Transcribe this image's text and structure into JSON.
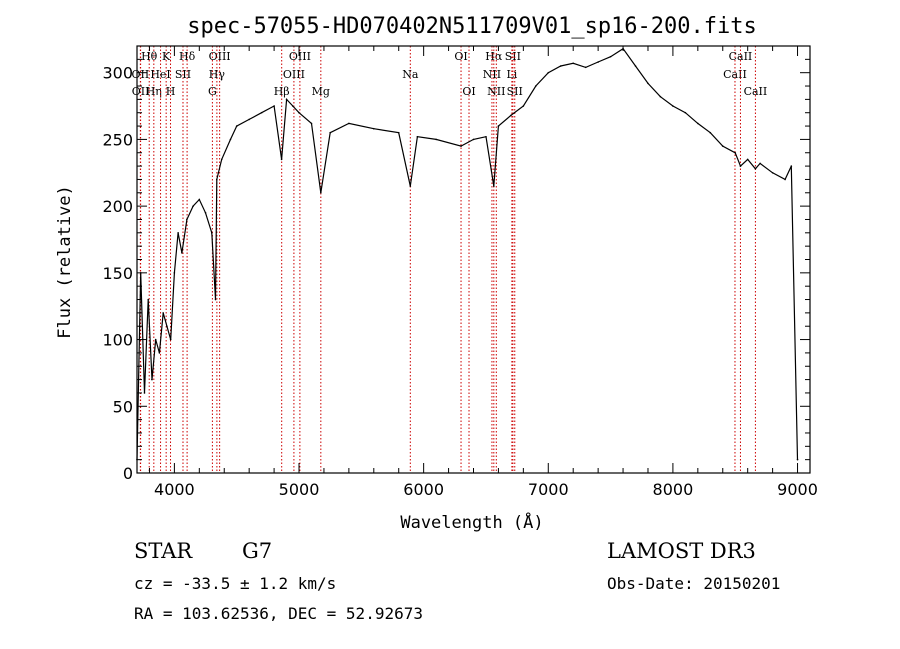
{
  "chart_data": {
    "type": "line",
    "title": "spec-57055-HD070402N511709V01_sp16-200.fits",
    "xlabel": "Wavelength (Å)",
    "ylabel": "Flux (relative)",
    "xlim": [
      3700,
      9100
    ],
    "ylim": [
      0,
      320
    ],
    "xticks": [
      4000,
      5000,
      6000,
      7000,
      8000,
      9000
    ],
    "yticks": [
      0,
      50,
      100,
      150,
      200,
      250,
      300
    ],
    "series": [
      {
        "name": "spectrum",
        "x": [
          3700,
          3730,
          3760,
          3790,
          3820,
          3850,
          3880,
          3910,
          3940,
          3970,
          4000,
          4030,
          4060,
          4100,
          4150,
          4200,
          4250,
          4300,
          4330,
          4340,
          4380,
          4450,
          4500,
          4600,
          4700,
          4800,
          4860,
          4900,
          4950,
          5000,
          5100,
          5175,
          5250,
          5400,
          5600,
          5800,
          5893,
          5950,
          6100,
          6300,
          6400,
          6500,
          6563,
          6600,
          6700,
          6800,
          6900,
          7000,
          7100,
          7200,
          7300,
          7400,
          7500,
          7600,
          7700,
          7800,
          7900,
          8000,
          8100,
          8200,
          8300,
          8400,
          8500,
          8542,
          8600,
          8662,
          8700,
          8800,
          8900,
          8950,
          9000
        ],
        "values": [
          10,
          150,
          60,
          130,
          70,
          100,
          90,
          120,
          110,
          100,
          150,
          180,
          165,
          190,
          200,
          205,
          195,
          180,
          130,
          220,
          235,
          250,
          260,
          265,
          270,
          275,
          235,
          280,
          275,
          270,
          262,
          210,
          255,
          262,
          258,
          255,
          215,
          252,
          250,
          245,
          250,
          252,
          215,
          260,
          268,
          275,
          290,
          300,
          305,
          307,
          304,
          308,
          312,
          318,
          305,
          292,
          282,
          275,
          270,
          262,
          255,
          245,
          240,
          230,
          235,
          228,
          232,
          225,
          220,
          230,
          10
        ]
      }
    ],
    "lines": [
      {
        "name": "Hθ",
        "wavelength": 3798,
        "row": 0
      },
      {
        "name": "OII",
        "wavelength": 3727,
        "row": 1
      },
      {
        "name": "OII",
        "wavelength": 3729,
        "row": 2
      },
      {
        "name": "Hη",
        "wavelength": 3835,
        "row": 2
      },
      {
        "name": "HeI",
        "wavelength": 3889,
        "row": 1
      },
      {
        "name": "K",
        "wavelength": 3934,
        "row": 0
      },
      {
        "name": "H",
        "wavelength": 3969,
        "row": 2
      },
      {
        "name": "SII",
        "wavelength": 4069,
        "row": 1
      },
      {
        "name": "Hδ",
        "wavelength": 4102,
        "row": 0
      },
      {
        "name": "G",
        "wavelength": 4305,
        "row": 2
      },
      {
        "name": "OIII",
        "wavelength": 4363,
        "row": 0
      },
      {
        "name": "Hγ",
        "wavelength": 4341,
        "row": 1
      },
      {
        "name": "Hβ",
        "wavelength": 4861,
        "row": 2
      },
      {
        "name": "OIII",
        "wavelength": 4959,
        "row": 1
      },
      {
        "name": "OIII",
        "wavelength": 5007,
        "row": 0
      },
      {
        "name": "Mg",
        "wavelength": 5175,
        "row": 2
      },
      {
        "name": "Na",
        "wavelength": 5893,
        "row": 1
      },
      {
        "name": "OI",
        "wavelength": 6300,
        "row": 0
      },
      {
        "name": "OI",
        "wavelength": 6364,
        "row": 2
      },
      {
        "name": "Hα",
        "wavelength": 6563,
        "row": 0
      },
      {
        "name": "NII",
        "wavelength": 6548,
        "row": 1
      },
      {
        "name": "NII",
        "wavelength": 6583,
        "row": 2
      },
      {
        "name": "SII",
        "wavelength": 6716,
        "row": 0
      },
      {
        "name": "Li",
        "wavelength": 6708,
        "row": 1
      },
      {
        "name": "SII",
        "wavelength": 6731,
        "row": 2
      },
      {
        "name": "CaII",
        "wavelength": 8498,
        "row": 1
      },
      {
        "name": "CaII",
        "wavelength": 8542,
        "row": 0
      },
      {
        "name": "CaII",
        "wavelength": 8662,
        "row": 2
      }
    ],
    "line_color": "#cc0000"
  },
  "info": {
    "object_type": "STAR",
    "subclass": "G7",
    "survey": "LAMOST DR3",
    "cz": "cz = -33.5 ± 1.2 km/s",
    "obs_date": "Obs-Date: 20150201",
    "coords": "RA = 103.62536, DEC =  52.92673"
  }
}
